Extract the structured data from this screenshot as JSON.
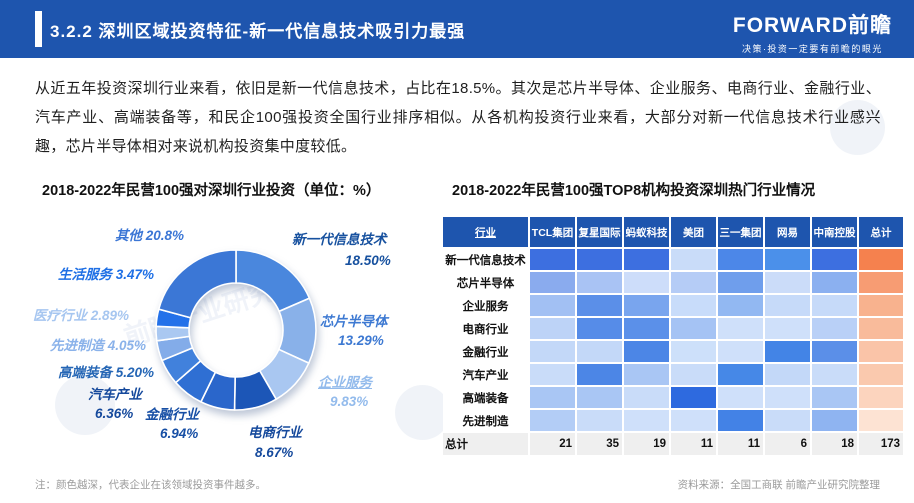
{
  "header": {
    "title": "3.2.2 深圳区域投资特征-新一代信息技术吸引力最强",
    "logo": "FORWARD前瞻",
    "tagline": "决策·投资一定要有前瞻的眼光"
  },
  "paragraph": "从近五年投资深圳行业来看，依旧是新一代信息技术，占比在18.5%。其次是芯片半导体、企业服务、电商行业、金融行业、汽车产业、高端装备等，和民企100强投资全国行业排序相似。从各机构投资行业来看，大部分对新一代信息技术行业感兴趣，芯片半导体相对来说机构投资集中度较低。",
  "left_chart_title": "2018-2022年民营100强对深圳行业投资（单位：%）",
  "right_chart_title": "2018-2022年民营100强TOP8机构投资深圳热门行业情况",
  "chart_data": [
    {
      "type": "pie",
      "subtype": "donut",
      "title": "2018-2022年民营100强对深圳行业投资（单位：%）",
      "unit": "%",
      "slices": [
        {
          "label": "新一代信息技术",
          "value": 18.5,
          "value_text": "18.50%",
          "color": "#4a87dd",
          "label_color": "#17519f"
        },
        {
          "label": "芯片半导体",
          "value": 13.29,
          "value_text": "13.29%",
          "color": "#89b1e9",
          "label_color": "#3d79d2"
        },
        {
          "label": "企业服务",
          "value": 9.83,
          "value_text": "9.83%",
          "color": "#a9c7f1",
          "label_color": "#93bbec",
          "underline": true
        },
        {
          "label": "电商行业",
          "value": 8.67,
          "value_text": "8.67%",
          "color": "#1c56b7",
          "label_color": "#15499c"
        },
        {
          "label": "金融行业",
          "value": 6.94,
          "value_text": "6.94%",
          "color": "#2a66cb",
          "label_color": "#174fa5"
        },
        {
          "label": "汽车产业",
          "value": 6.36,
          "value_text": "6.36%",
          "color": "#2f6fd3",
          "label_color": "#15499c"
        },
        {
          "label": "高端装备",
          "value": 5.2,
          "value_text": "5.20%",
          "color": "#4181dc",
          "label_color": "#2566b5"
        },
        {
          "label": "先进制造",
          "value": 4.05,
          "value_text": "4.05%",
          "color": "#83ace9",
          "label_color": "#8ab2ea"
        },
        {
          "label": "医疗行业",
          "value": 2.89,
          "value_text": "2.89%",
          "color": "#aac8f1",
          "label_color": "#a6c6f0"
        },
        {
          "label": "生活服务",
          "value": 3.47,
          "value_text": "3.47%",
          "color": "#2471e9",
          "label_color": "#1e6fe5"
        },
        {
          "label": "其他",
          "value": 20.8,
          "value_text": "20.8%",
          "color": "#3b77d6",
          "label_color": "#3b76d5"
        }
      ]
    },
    {
      "type": "heatmap",
      "title": "2018-2022年民营100强TOP8机构投资深圳热门行业情况",
      "columns": [
        "行业",
        "TCL集团",
        "复星国际",
        "蚂蚁科技",
        "美团",
        "三一集团",
        "网易",
        "中南控股",
        "总计"
      ],
      "rows": [
        {
          "label": "新一代信息技术",
          "colors": [
            "#3d6fe0",
            "#3d6fe0",
            "#3d6fe0",
            "#c9dcf9",
            "#4c87e8",
            "#4b90ea",
            "#3d6fe0",
            "#f5814e"
          ]
        },
        {
          "label": "芯片半导体",
          "colors": [
            "#8aabee",
            "#a9c3f4",
            "#cdddfa",
            "#b5ccf6",
            "#6f9eec",
            "#cbdcf9",
            "#8bb0f0",
            "#f79c73"
          ]
        },
        {
          "label": "企业服务",
          "colors": [
            "#a2c0f3",
            "#5b8fe8",
            "#79a5ee",
            "#c8dcfa",
            "#92b8f2",
            "#c6daf9",
            "#c6daf9",
            "#f8b28e"
          ]
        },
        {
          "label": "电商行业",
          "colors": [
            "#bdd3f7",
            "#568ce8",
            "#5b90e9",
            "#a5c3f4",
            "#cfe0fa",
            "#cfe0fa",
            "#b9d0f7",
            "#f9bb9b"
          ]
        },
        {
          "label": "金融行业",
          "colors": [
            "#c3d8f8",
            "#c3d8f8",
            "#4c86e6",
            "#cde0fa",
            "#cfe0fa",
            "#4384e6",
            "#5b8fe8",
            "#fac4a8"
          ]
        },
        {
          "label": "汽车产业",
          "colors": [
            "#c9dcf9",
            "#4c86e6",
            "#a9c6f4",
            "#c9dcf9",
            "#4688e7",
            "#c3d8f8",
            "#c9dcf9",
            "#fac9ae"
          ]
        },
        {
          "label": "高端装备",
          "colors": [
            "#a9c6f4",
            "#a9c6f4",
            "#c9dcf9",
            "#2e6adf",
            "#cfe0fa",
            "#cfe0fa",
            "#a9c6f4",
            "#fcd4be"
          ]
        },
        {
          "label": "先进制造",
          "colors": [
            "#b3cdf6",
            "#c9dcf9",
            "#cfe0fa",
            "#cfe0fa",
            "#4382e6",
            "#c9dcf9",
            "#8fb4f1",
            "#fde3d3"
          ]
        }
      ],
      "totals": {
        "label": "总计",
        "values": [
          "21",
          "35",
          "19",
          "11",
          "11",
          "6",
          "18",
          "173"
        ]
      },
      "legend_note": "颜色越深，代表企业在该领域投资事件越多"
    }
  ],
  "footer": {
    "note": "注：颜色越深，代表企业在该领域投资事件越多。",
    "source": "资料来源：全国工商联  前瞻产业研究院整理"
  },
  "watermark": "前瞻产业研究院",
  "colors": {
    "header_blue": "#1e55ae",
    "total_col_orange": "#f5814e"
  }
}
